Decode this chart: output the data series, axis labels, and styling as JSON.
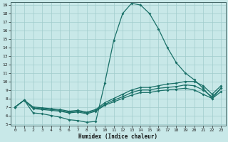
{
  "bg_color": "#c8e8e8",
  "grid_color": "#a0cccc",
  "line_color": "#1a7068",
  "xlabel": "Humidex (Indice chaleur)",
  "ylim": [
    5,
    19
  ],
  "xlim": [
    -0.5,
    23.5
  ],
  "yticks": [
    5,
    6,
    7,
    8,
    9,
    10,
    11,
    12,
    13,
    14,
    15,
    16,
    17,
    18,
    19
  ],
  "xticks": [
    0,
    1,
    2,
    3,
    4,
    5,
    6,
    7,
    8,
    9,
    10,
    11,
    12,
    13,
    14,
    15,
    16,
    17,
    18,
    19,
    20,
    21,
    22,
    23
  ],
  "line_peak_x": [
    0,
    1,
    2,
    3,
    4,
    5,
    6,
    7,
    8,
    9,
    10,
    11,
    12,
    13,
    14,
    15,
    16,
    17,
    18,
    19,
    20,
    21,
    22,
    23
  ],
  "line_peak_y": [
    7.0,
    7.8,
    6.3,
    6.2,
    6.0,
    5.8,
    5.5,
    5.4,
    5.2,
    5.3,
    9.8,
    14.8,
    18.0,
    19.2,
    19.0,
    18.0,
    16.2,
    14.0,
    12.2,
    11.0,
    10.2,
    9.2,
    8.0,
    9.2
  ],
  "line_top_x": [
    0,
    1,
    2,
    3,
    4,
    5,
    6,
    7,
    8,
    9,
    10,
    11,
    12,
    13,
    14,
    15,
    16,
    17,
    18,
    19,
    20,
    21,
    22,
    23
  ],
  "line_top_y": [
    7.0,
    7.8,
    7.0,
    6.9,
    6.8,
    6.7,
    6.5,
    6.6,
    6.4,
    6.7,
    7.5,
    8.0,
    8.5,
    9.0,
    9.3,
    9.3,
    9.5,
    9.7,
    9.8,
    10.0,
    10.0,
    9.5,
    8.5,
    9.5
  ],
  "line_mid_x": [
    0,
    1,
    2,
    3,
    4,
    5,
    6,
    7,
    8,
    9,
    10,
    11,
    12,
    13,
    14,
    15,
    16,
    17,
    18,
    19,
    20,
    21,
    22,
    23
  ],
  "line_mid_y": [
    7.0,
    7.8,
    6.9,
    6.8,
    6.7,
    6.6,
    6.4,
    6.5,
    6.3,
    6.6,
    7.3,
    7.8,
    8.2,
    8.7,
    9.0,
    9.0,
    9.2,
    9.3,
    9.4,
    9.6,
    9.5,
    9.0,
    8.2,
    9.2
  ],
  "line_bot_x": [
    0,
    1,
    2,
    3,
    4,
    5,
    6,
    7,
    8,
    9,
    10,
    11,
    12,
    13,
    14,
    15,
    16,
    17,
    18,
    19,
    20,
    21,
    22,
    23
  ],
  "line_bot_y": [
    7.0,
    7.8,
    6.8,
    6.7,
    6.6,
    6.5,
    6.3,
    6.4,
    6.2,
    6.5,
    7.2,
    7.6,
    8.0,
    8.4,
    8.7,
    8.7,
    8.9,
    9.0,
    9.1,
    9.2,
    9.0,
    8.5,
    8.0,
    8.8
  ]
}
